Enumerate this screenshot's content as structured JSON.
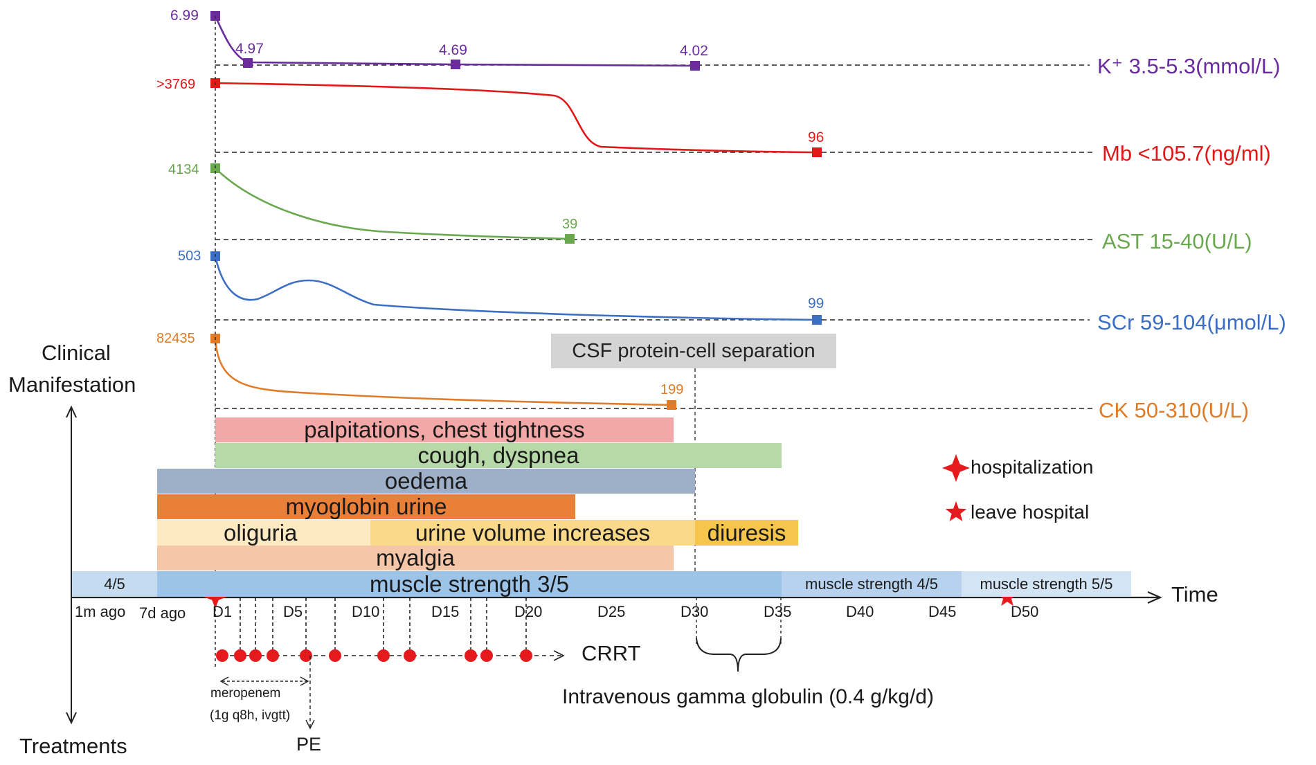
{
  "axis": {
    "clinical": "Clinical\nManifestation",
    "clinical_line1": "Clinical",
    "clinical_line2": "Manifestation",
    "treatments": "Treatments",
    "time": "Time"
  },
  "time_ticks": [
    "1m ago",
    "7d ago",
    "D1",
    "D5",
    "D10",
    "D15",
    "D20",
    "D25",
    "D30",
    "D35",
    "D40",
    "D45",
    "D50"
  ],
  "lab_series": [
    {
      "key": "k",
      "label": "K⁺ 3.5-5.3(mmol/L)",
      "color": "#6a2c9c",
      "points": [
        {
          "day": 1,
          "value": "6.99"
        },
        {
          "day": 3.2,
          "value": "4.97"
        },
        {
          "day": 15.5,
          "value": "4.69"
        },
        {
          "day": 30,
          "value": "4.02"
        }
      ]
    },
    {
      "key": "mb",
      "label": "Mb <105.7(ng/ml)",
      "color": "#e01818",
      "points": [
        {
          "day": 1,
          "value": ">3769"
        },
        {
          "day": 37,
          "value": "96"
        }
      ]
    },
    {
      "key": "ast",
      "label": "AST 15-40(U/L)",
      "color": "#6aa84f",
      "points": [
        {
          "day": 1,
          "value": "4134"
        },
        {
          "day": 22.5,
          "value": "39"
        }
      ]
    },
    {
      "key": "scr",
      "label": "SCr 59-104(μmol/L)",
      "color": "#3c6fc4",
      "points": [
        {
          "day": 1,
          "value": "503"
        },
        {
          "day": 37,
          "value": "99"
        }
      ]
    },
    {
      "key": "ck",
      "label": "CK 50-310(U/L)",
      "color": "#e07b28",
      "points": [
        {
          "day": 1,
          "value": "82435"
        },
        {
          "day": 28.5,
          "value": "199"
        }
      ]
    }
  ],
  "csf_note": "CSF protein-cell separation",
  "manifestations": [
    {
      "label": "palpitations, chest tightness",
      "color": "#f4a7a7"
    },
    {
      "label": "cough, dyspnea",
      "color": "#b7d9a8"
    },
    {
      "label": "oedema",
      "color": "#9eafc8"
    },
    {
      "label": "myoglobin urine",
      "color": "#e9803a"
    },
    {
      "label": "oliguria",
      "color": "#fdeac2"
    },
    {
      "label": "urine volume increases",
      "color": "#fbd98a"
    },
    {
      "label": "diuresis",
      "color": "#f6c54b"
    },
    {
      "label": "myalgia",
      "color": "#f6c6a8"
    }
  ],
  "muscle_strength": [
    {
      "label": "4/5",
      "color": "#c5dcf0"
    },
    {
      "label": "muscle strength 3/5",
      "color": "#9cc3e8"
    },
    {
      "label": "muscle strength 4/5",
      "color": "#b7d2ee"
    },
    {
      "label": "muscle strength 5/5",
      "color": "#d3e4f5"
    }
  ],
  "legend": {
    "hospitalization": "hospitalization",
    "leave": "leave hospital",
    "color": "#e41a1c"
  },
  "treatments": {
    "crrt": "CRRT",
    "crrt_days": [
      1.5,
      2.7,
      3.6,
      4.7,
      6.7,
      8.5,
      11.5,
      13.1,
      16.8,
      17.7,
      19.9
    ],
    "meropenem_name": "meropenem",
    "meropenem_dose": "(1g q8h, ivgtt)",
    "pe": "PE",
    "ivig": "Intravenous gamma globulin (0.4 g/kg/d)"
  }
}
